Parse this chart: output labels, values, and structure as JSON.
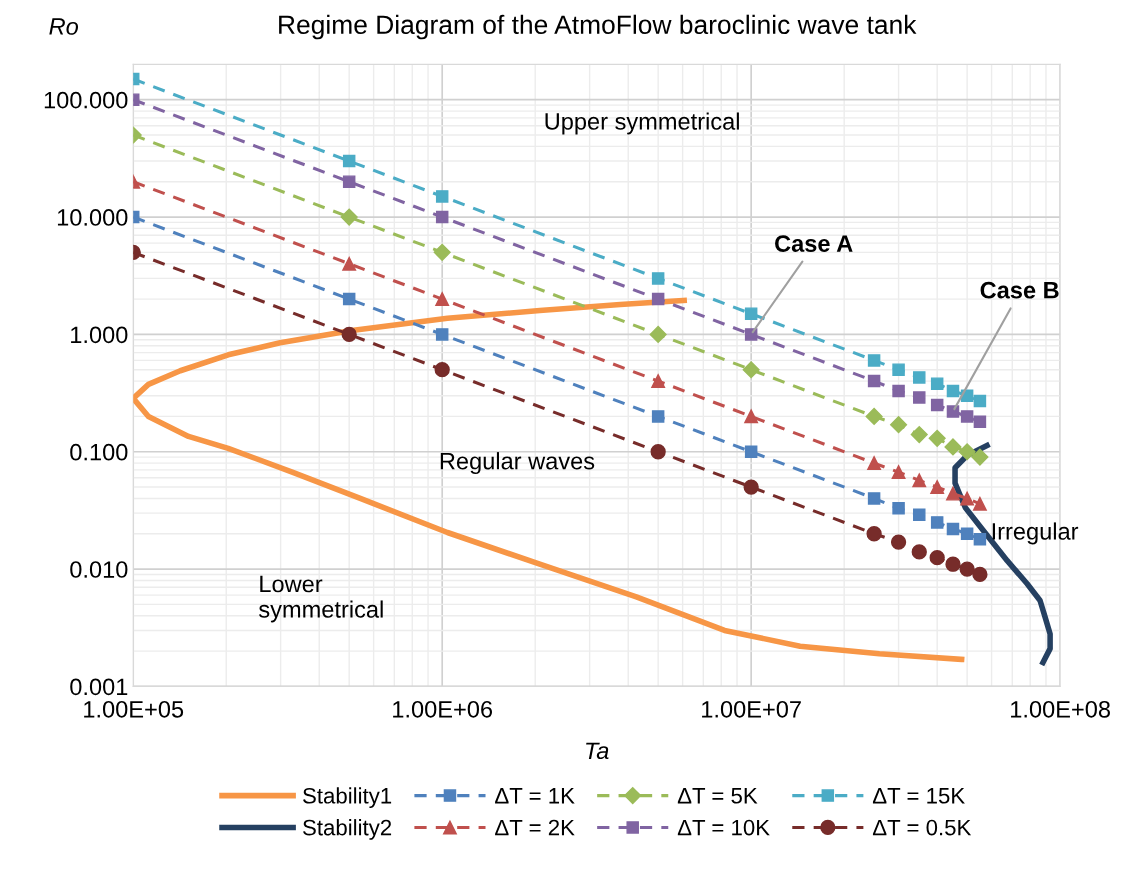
{
  "chart_data": {
    "type": "line",
    "title": "Regime Diagram of the AtmoFlow baroclinic wave tank",
    "xlabel": "Ta",
    "ylabel": "Ro",
    "log": "xy",
    "grid": true,
    "legend": "bottom",
    "line_style": "dashed",
    "xlim": [
      100000,
      100000000
    ],
    "xticks": [
      {
        "value": 100000,
        "label": "1.00E+05"
      },
      {
        "value": 1000000,
        "label": "1.00E+06"
      },
      {
        "value": 10000000,
        "label": "1.00E+07"
      },
      {
        "value": 100000000,
        "label": "1.00E+08"
      }
    ],
    "ylim": [
      0.001,
      200
    ],
    "yticks": [
      {
        "value": 0.001,
        "label": "0.001"
      },
      {
        "value": 0.01,
        "label": "0.010"
      },
      {
        "value": 0.1,
        "label": "0.100"
      },
      {
        "value": 1,
        "label": "1.000"
      },
      {
        "value": 10,
        "label": "10.000"
      },
      {
        "value": 100,
        "label": "100.000"
      }
    ],
    "series": [
      {
        "name": "Stability1",
        "color": "#f79646",
        "line_style": "solid",
        "marker": "none",
        "x": [
          48000000,
          26000000,
          14400000,
          8200000,
          4250000,
          2070000,
          1040000,
          543000,
          327000,
          203000,
          151000,
          112000,
          100000,
          112000,
          142000,
          203000,
          299000,
          510000,
          1040000,
          2070000,
          3770000,
          6070000
        ],
        "values": [
          0.0017,
          0.0019,
          0.0022,
          0.003,
          0.0058,
          0.011,
          0.0205,
          0.04,
          0.067,
          0.107,
          0.135,
          0.2,
          0.285,
          0.375,
          0.49,
          0.67,
          0.85,
          1.08,
          1.37,
          1.6,
          1.8,
          1.95
        ]
      },
      {
        "name": "Stability2",
        "color": "#254061",
        "line_style": "solid",
        "marker": "none",
        "x": [
          58000000,
          50000000,
          45700000,
          45700000,
          49300000,
          56400000,
          67400000,
          78200000,
          86100000,
          89400000,
          92800000,
          92800000,
          88000000
        ],
        "values": [
          0.113,
          0.093,
          0.073,
          0.054,
          0.0335,
          0.0213,
          0.0118,
          0.0075,
          0.0054,
          0.0039,
          0.0028,
          0.0021,
          0.0016
        ]
      },
      {
        "name": "ΔT = 1K",
        "color": "#4f81bd",
        "marker": "square",
        "x": [
          100000,
          500000,
          1000000,
          5000000,
          10000000,
          25000000,
          30000000,
          35000000,
          40000000,
          45000000,
          50000000,
          55000000
        ],
        "values": [
          10,
          2,
          1,
          0.2,
          0.1,
          0.04,
          0.033,
          0.029,
          0.025,
          0.022,
          0.02,
          0.018
        ]
      },
      {
        "name": "ΔT = 2K",
        "color": "#c0504d",
        "marker": "triangle",
        "x": [
          100000,
          500000,
          1000000,
          5000000,
          10000000,
          25000000,
          30000000,
          35000000,
          40000000,
          45000000,
          50000000,
          55000000
        ],
        "values": [
          20,
          4,
          2,
          0.4,
          0.2,
          0.08,
          0.067,
          0.057,
          0.05,
          0.044,
          0.04,
          0.036
        ]
      },
      {
        "name": "ΔT = 5K",
        "color": "#9bbb59",
        "marker": "diamond",
        "x": [
          100000,
          500000,
          1000000,
          5000000,
          10000000,
          25000000,
          30000000,
          35000000,
          40000000,
          45000000,
          50000000,
          55000000
        ],
        "values": [
          50,
          10,
          5,
          1,
          0.5,
          0.2,
          0.17,
          0.14,
          0.13,
          0.11,
          0.1,
          0.09
        ]
      },
      {
        "name": "ΔT = 10K",
        "color": "#8064a2",
        "marker": "square",
        "x": [
          100000,
          500000,
          1000000,
          5000000,
          10000000,
          25000000,
          30000000,
          35000000,
          40000000,
          45000000,
          50000000,
          55000000
        ],
        "values": [
          100,
          20,
          10,
          2,
          1,
          0.4,
          0.33,
          0.29,
          0.25,
          0.22,
          0.2,
          0.18
        ]
      },
      {
        "name": "ΔT = 15K",
        "color": "#4bacc6",
        "marker": "square",
        "x": [
          100000,
          500000,
          1000000,
          5000000,
          10000000,
          25000000,
          30000000,
          35000000,
          40000000,
          45000000,
          50000000,
          55000000
        ],
        "values": [
          150,
          30,
          15,
          3,
          1.5,
          0.6,
          0.5,
          0.43,
          0.38,
          0.33,
          0.3,
          0.27
        ]
      },
      {
        "name": "ΔT = 0.5K",
        "color": "#772c2a",
        "marker": "circle",
        "x": [
          100000,
          500000,
          1000000,
          5000000,
          10000000,
          25000000,
          30000000,
          35000000,
          40000000,
          45000000,
          50000000,
          55000000
        ],
        "values": [
          5,
          1,
          0.5,
          0.1,
          0.05,
          0.02,
          0.017,
          0.014,
          0.0125,
          0.011,
          0.01,
          0.009
        ]
      }
    ],
    "annotations": [
      "Upper symmetrical",
      "Regular waves",
      "Lower\nsymmetrical",
      "Irregular",
      {
        "text": "Case A",
        "x": 10000000,
        "y": 1
      },
      {
        "text": "Case B",
        "x": 45000000,
        "y": 0.22
      }
    ]
  }
}
